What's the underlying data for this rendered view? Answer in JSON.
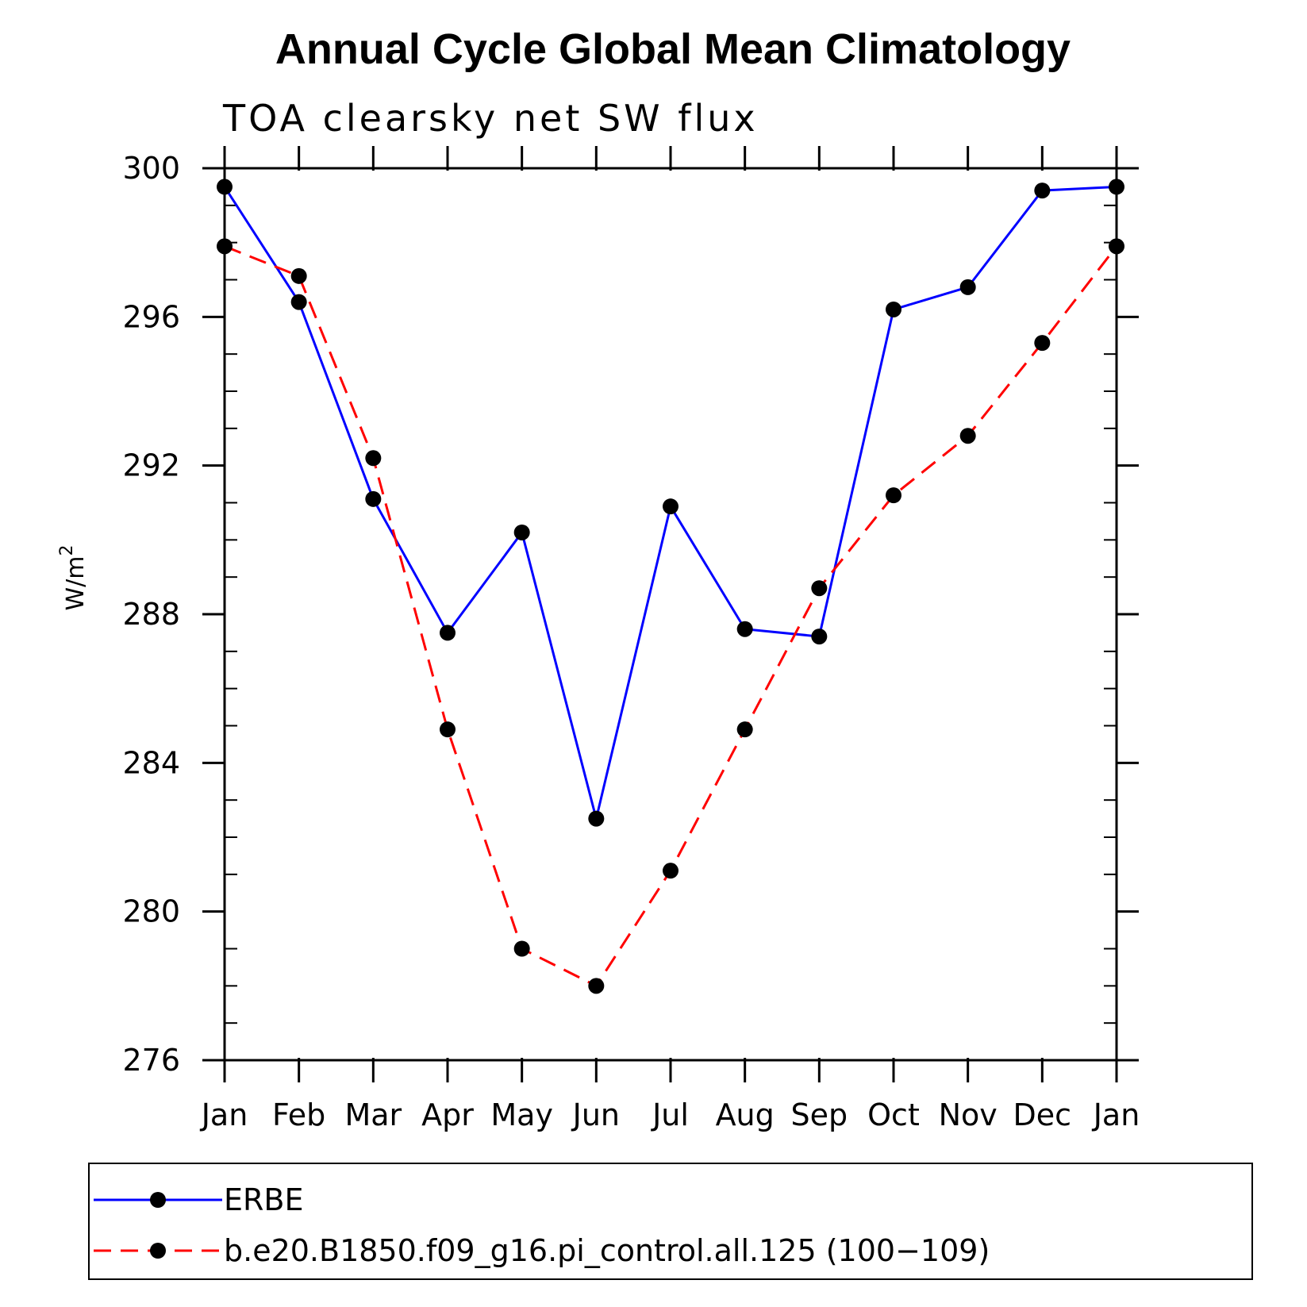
{
  "chart_data": {
    "type": "line",
    "title": "Annual Cycle Global Mean Climatology",
    "subtitle": "TOA clearsky net SW flux",
    "ylabel_base": "W/m",
    "ylabel_sup": "2",
    "xlabel": "",
    "categories": [
      "Jan",
      "Feb",
      "Mar",
      "Apr",
      "May",
      "Jun",
      "Jul",
      "Aug",
      "Sep",
      "Oct",
      "Nov",
      "Dec",
      "Jan"
    ],
    "ylim": [
      276,
      300
    ],
    "yticks": [
      276,
      280,
      284,
      288,
      292,
      296,
      300
    ],
    "grid": false,
    "legend_position": "bottom",
    "series": [
      {
        "name": "ERBE",
        "color": "#0000ff",
        "dash": "solid",
        "values": [
          299.5,
          296.4,
          291.1,
          287.5,
          290.2,
          282.5,
          290.9,
          287.6,
          287.4,
          296.2,
          296.8,
          299.4,
          299.5
        ]
      },
      {
        "name": "b.e20.B1850.f09_g16.pi_control.all.125 (100−109)",
        "color": "#ff0000",
        "dash": "dashed",
        "values": [
          297.9,
          297.1,
          292.2,
          284.9,
          279.0,
          278.0,
          281.1,
          284.9,
          288.7,
          291.2,
          292.8,
          295.3,
          297.9
        ]
      }
    ]
  }
}
